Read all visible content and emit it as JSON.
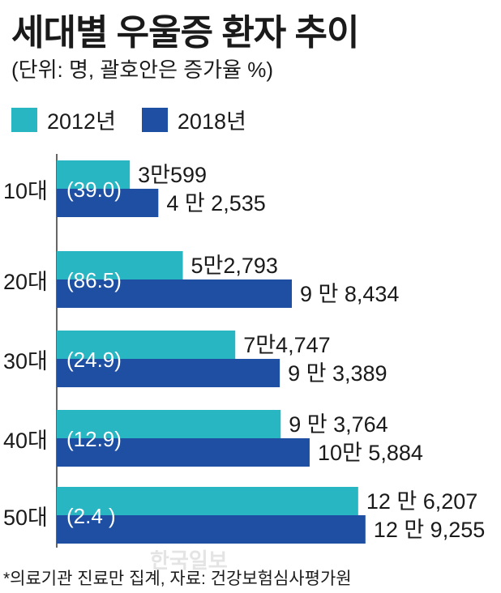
{
  "title": "세대별 우울증 환자 추이",
  "subtitle": "(단위: 명, 괄호안은 증가율 %)",
  "colors": {
    "series_2012": "#29b6c3",
    "series_2018": "#1f4fa3"
  },
  "legend": [
    {
      "label": "2012년",
      "color": "#29b6c3"
    },
    {
      "label": "2018년",
      "color": "#1f4fa3"
    }
  ],
  "chart_data": {
    "type": "bar",
    "orientation": "horizontal",
    "categories": [
      "10대",
      "20대",
      "30대",
      "40대",
      "50대"
    ],
    "series": [
      {
        "name": "2012년",
        "values": [
          30599,
          52793,
          74747,
          93764,
          126207
        ],
        "labels": [
          "3만599",
          "5만2,793",
          "7만4,747",
          "9 만 3,764",
          "12 만 6,207"
        ]
      },
      {
        "name": "2018년",
        "values": [
          42535,
          98434,
          93389,
          105884,
          129255
        ],
        "labels": [
          "4 만 2,535",
          "9 만 8,434",
          "9 만 3,389",
          "10만 5,884",
          "12 만 9,255"
        ]
      }
    ],
    "growth_labels": [
      "(39.0)",
      "(86.5)",
      "(24.9)",
      "(12.9)",
      "(2.4 )"
    ],
    "xlim": [
      0,
      130000
    ]
  },
  "footnote": "*의료기관 진료만 집계, 자료: 건강보험심사평가원",
  "watermark": "한국일보"
}
